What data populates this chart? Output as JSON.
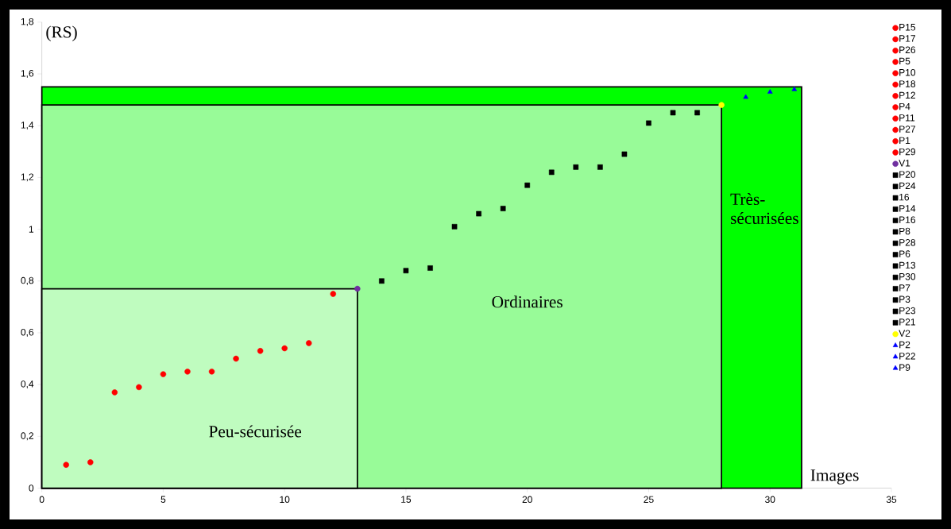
{
  "chart_data": {
    "type": "scatter",
    "xlabel": "Images",
    "ylabel": "(RS)",
    "xlim": [
      0,
      35
    ],
    "ylim": [
      0,
      1.8
    ],
    "xticks": [
      0,
      5,
      10,
      15,
      20,
      25,
      30,
      35
    ],
    "yticks": [
      0,
      {
        "value": 0.2,
        "label": "0,2"
      },
      {
        "value": 0.4,
        "label": "0,4"
      },
      {
        "value": 0.6,
        "label": "0,6"
      },
      {
        "value": 0.8,
        "label": "0,8"
      },
      1,
      {
        "value": 1.2,
        "label": "1,2"
      },
      {
        "value": 1.4,
        "label": "1,4"
      },
      {
        "value": 1.6,
        "label": "1,6"
      },
      {
        "value": 1.8,
        "label": "1,8"
      }
    ],
    "legend": "right",
    "grid": false,
    "annotations": [
      "Peu-sécurisée",
      "Ordinaires",
      "Très-sécurisées"
    ],
    "series": [
      {
        "type": "area",
        "color": "#00ff00",
        "x": [
          0,
          31.3
        ],
        "values": [
          1.55,
          1.55
        ]
      },
      {
        "type": "area",
        "color": "#98fb98",
        "x": [
          0,
          28
        ],
        "values": [
          1.48,
          1.48
        ]
      },
      {
        "type": "area",
        "color": "#bffcbf",
        "x": [
          0,
          13
        ],
        "values": [
          0.77,
          0.77
        ]
      },
      {
        "name": "P15",
        "color": "#ff0000",
        "marker": "circle",
        "x": [
          1
        ],
        "values": [
          0.09
        ]
      },
      {
        "name": "P17",
        "color": "#ff0000",
        "marker": "circle",
        "x": [
          2
        ],
        "values": [
          0.1
        ]
      },
      {
        "name": "P26",
        "color": "#ff0000",
        "marker": "circle",
        "x": [
          3
        ],
        "values": [
          0.37
        ]
      },
      {
        "name": "P5",
        "color": "#ff0000",
        "marker": "circle",
        "x": [
          4
        ],
        "values": [
          0.39
        ]
      },
      {
        "name": "P10",
        "color": "#ff0000",
        "marker": "circle",
        "x": [
          5
        ],
        "values": [
          0.44
        ]
      },
      {
        "name": "P18",
        "color": "#ff0000",
        "marker": "circle",
        "x": [
          6
        ],
        "values": [
          0.45
        ]
      },
      {
        "name": "P12",
        "color": "#ff0000",
        "marker": "circle",
        "x": [
          7
        ],
        "values": [
          0.45
        ]
      },
      {
        "name": "P4",
        "color": "#ff0000",
        "marker": "circle",
        "x": [
          8
        ],
        "values": [
          0.5
        ]
      },
      {
        "name": "P11",
        "color": "#ff0000",
        "marker": "circle",
        "x": [
          9
        ],
        "values": [
          0.53
        ]
      },
      {
        "name": "P27",
        "color": "#ff0000",
        "marker": "circle",
        "x": [
          10
        ],
        "values": [
          0.54
        ]
      },
      {
        "name": "P1",
        "color": "#ff0000",
        "marker": "circle",
        "x": [
          11
        ],
        "values": [
          0.56
        ]
      },
      {
        "name": "P29",
        "color": "#ff0000",
        "marker": "circle",
        "x": [
          12
        ],
        "values": [
          0.75
        ]
      },
      {
        "name": "V1",
        "color": "#7030a0",
        "marker": "circle",
        "x": [
          13
        ],
        "values": [
          0.77
        ]
      },
      {
        "name": "P20",
        "color": "#000000",
        "marker": "square",
        "x": [
          14
        ],
        "values": [
          0.8
        ]
      },
      {
        "name": "P24",
        "color": "#000000",
        "marker": "square",
        "x": [
          15
        ],
        "values": [
          0.84
        ]
      },
      {
        "name": "16",
        "color": "#000000",
        "marker": "square",
        "x": [
          16
        ],
        "values": [
          0.85
        ]
      },
      {
        "name": "P14",
        "color": "#000000",
        "marker": "square",
        "x": [
          17
        ],
        "values": [
          1.01
        ]
      },
      {
        "name": "P16",
        "color": "#000000",
        "marker": "square",
        "x": [
          18
        ],
        "values": [
          1.06
        ]
      },
      {
        "name": "P8",
        "color": "#000000",
        "marker": "square",
        "x": [
          19
        ],
        "values": [
          1.08
        ]
      },
      {
        "name": "P28",
        "color": "#000000",
        "marker": "square",
        "x": [
          20
        ],
        "values": [
          1.17
        ]
      },
      {
        "name": "P6",
        "color": "#000000",
        "marker": "square",
        "x": [
          21
        ],
        "values": [
          1.22
        ]
      },
      {
        "name": "P13",
        "color": "#000000",
        "marker": "square",
        "x": [
          22
        ],
        "values": [
          1.24
        ]
      },
      {
        "name": "P30",
        "color": "#000000",
        "marker": "square",
        "x": [
          23
        ],
        "values": [
          1.24
        ]
      },
      {
        "name": "P7",
        "color": "#000000",
        "marker": "square",
        "x": [
          24
        ],
        "values": [
          1.29
        ]
      },
      {
        "name": "P3",
        "color": "#000000",
        "marker": "square",
        "x": [
          25
        ],
        "values": [
          1.41
        ]
      },
      {
        "name": "P23",
        "color": "#000000",
        "marker": "square",
        "x": [
          26
        ],
        "values": [
          1.45
        ]
      },
      {
        "name": "P21",
        "color": "#000000",
        "marker": "square",
        "x": [
          27
        ],
        "values": [
          1.45
        ]
      },
      {
        "name": "V2",
        "color": "#ffff00",
        "marker": "circle",
        "x": [
          28
        ],
        "values": [
          1.48
        ]
      },
      {
        "name": "P2",
        "color": "#0000ff",
        "marker": "triangle",
        "x": [
          29
        ],
        "values": [
          1.51
        ]
      },
      {
        "name": "P22",
        "color": "#0000ff",
        "marker": "triangle",
        "x": [
          30
        ],
        "values": [
          1.53
        ]
      },
      {
        "name": "P9",
        "color": "#0000ff",
        "marker": "triangle",
        "x": [
          31
        ],
        "values": [
          1.54
        ]
      }
    ]
  }
}
